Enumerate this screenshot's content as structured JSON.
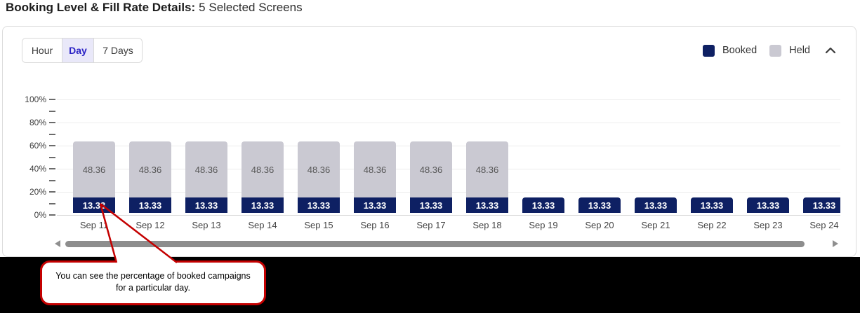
{
  "header": {
    "title_bold": "Booking Level & Fill Rate Details:",
    "title_regular": "5 Selected Screens"
  },
  "toolbar": {
    "tabs": [
      {
        "label": "Hour",
        "selected": false
      },
      {
        "label": "Day",
        "selected": true
      },
      {
        "label": "7 Days",
        "selected": false
      }
    ],
    "legend": {
      "items": [
        {
          "label": "Booked",
          "color": "#0e2063"
        },
        {
          "label": "Held",
          "color": "#cac9d2"
        }
      ],
      "collapse_icon": "chevron-up"
    }
  },
  "chart_data": {
    "type": "bar",
    "stacked": true,
    "categories": [
      "Sep 11",
      "Sep 12",
      "Sep 13",
      "Sep 14",
      "Sep 15",
      "Sep 16",
      "Sep 17",
      "Sep 18",
      "Sep 19",
      "Sep 20",
      "Sep 21",
      "Sep 22",
      "Sep 23",
      "Sep 24"
    ],
    "series": [
      {
        "name": "Booked",
        "color": "#0e2063",
        "label_color": "#ffffff",
        "values": [
          13.33,
          13.33,
          13.33,
          13.33,
          13.33,
          13.33,
          13.33,
          13.33,
          13.33,
          13.33,
          13.33,
          13.33,
          13.33,
          13.33
        ]
      },
      {
        "name": "Held",
        "color": "#cac9d2",
        "label_color": "#565656",
        "values": [
          48.36,
          48.36,
          48.36,
          48.36,
          48.36,
          48.36,
          48.36,
          48.36,
          0,
          0,
          0,
          0,
          0,
          0
        ]
      }
    ],
    "title": "",
    "xlabel": "",
    "ylabel": "",
    "y_ticks": [
      "0%",
      "20%",
      "40%",
      "60%",
      "80%",
      "100%"
    ],
    "ylim": [
      0,
      100
    ],
    "grid": true,
    "legend_position": "top-right"
  },
  "callout": {
    "line1": "You can see the percentage of booked campaigns",
    "line2": "for a particular day.",
    "border_color": "#c40000"
  }
}
